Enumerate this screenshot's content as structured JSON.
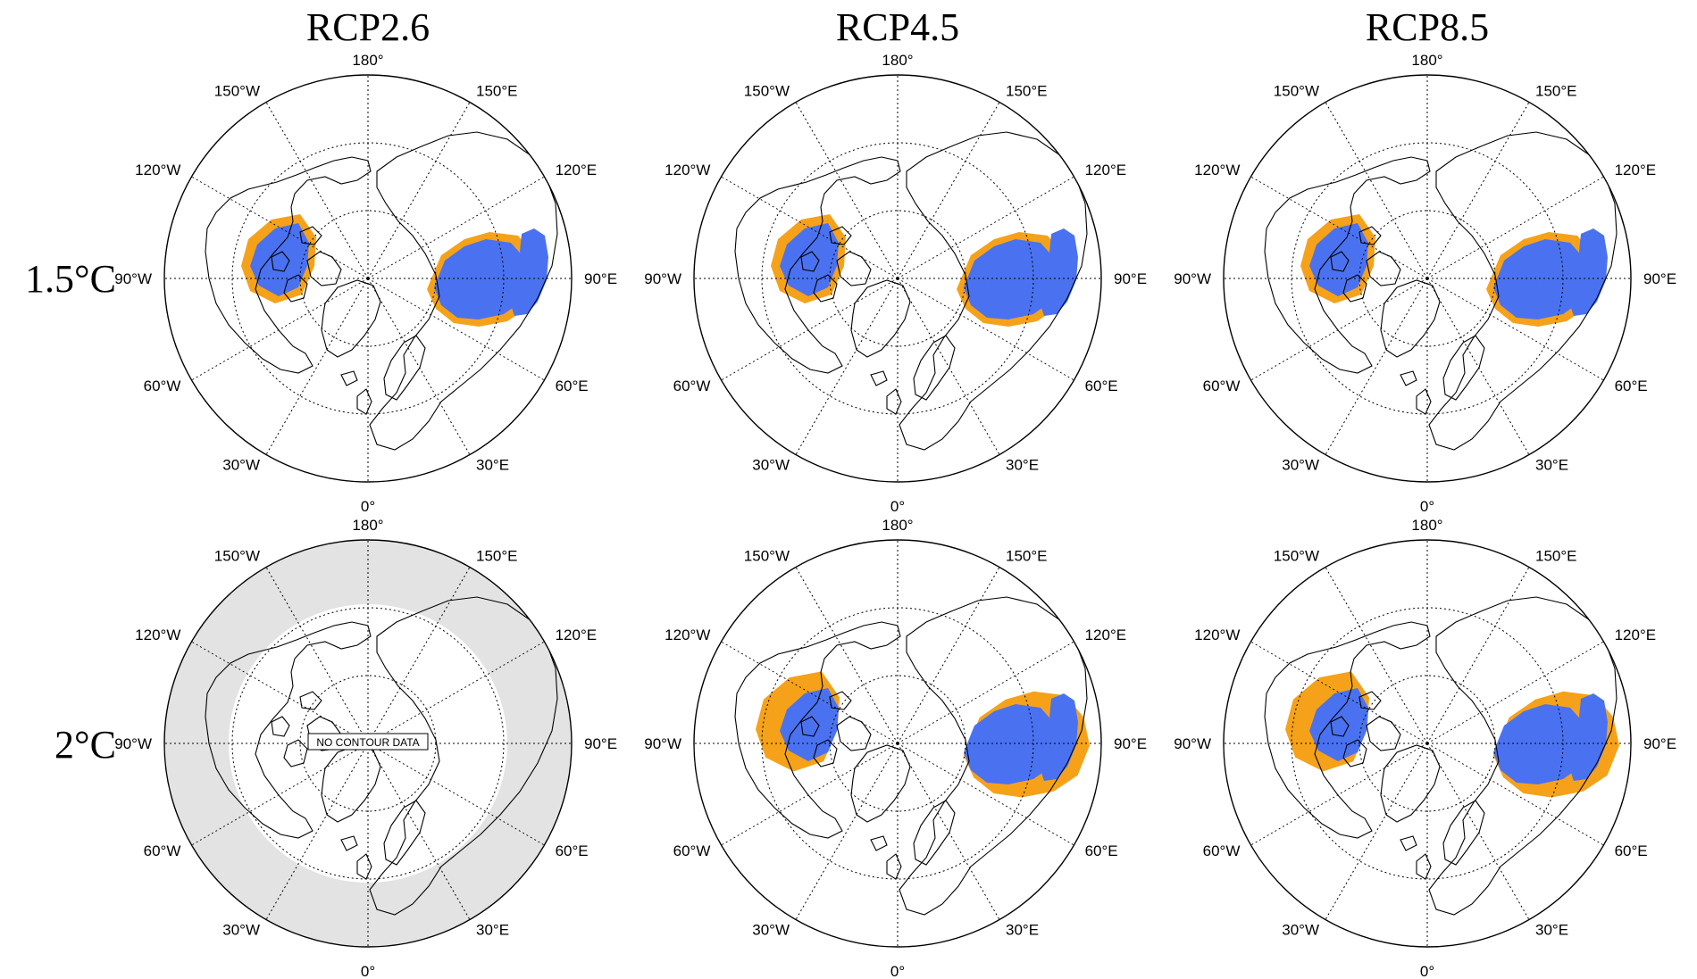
{
  "columns": [
    "RCP2.6",
    "RCP4.5",
    "RCP8.5"
  ],
  "rows": [
    "1.5°C",
    "2°C"
  ],
  "lon_labels": [
    "180°",
    "150°E",
    "120°E",
    "90°E",
    "60°E",
    "30°E",
    "0°",
    "30°W",
    "60°W",
    "90°W",
    "120°W",
    "150°W"
  ],
  "projection": "north polar stereographic",
  "colors": {
    "blue": "#4a72f0",
    "orange": "#f5a21a",
    "no_data_fill": "#e3e3e3",
    "coast": "#000000"
  },
  "panels": [
    {
      "scenario": "RCP2.6",
      "warming": "1.5°C",
      "state": "data"
    },
    {
      "scenario": "RCP4.5",
      "warming": "1.5°C",
      "state": "data"
    },
    {
      "scenario": "RCP8.5",
      "warming": "1.5°C",
      "state": "data"
    },
    {
      "scenario": "RCP2.6",
      "warming": "2°C",
      "state": "no_data",
      "message": "NO CONTOUR DATA"
    },
    {
      "scenario": "RCP4.5",
      "warming": "2°C",
      "state": "data"
    },
    {
      "scenario": "RCP8.5",
      "warming": "2°C",
      "state": "data"
    }
  ]
}
